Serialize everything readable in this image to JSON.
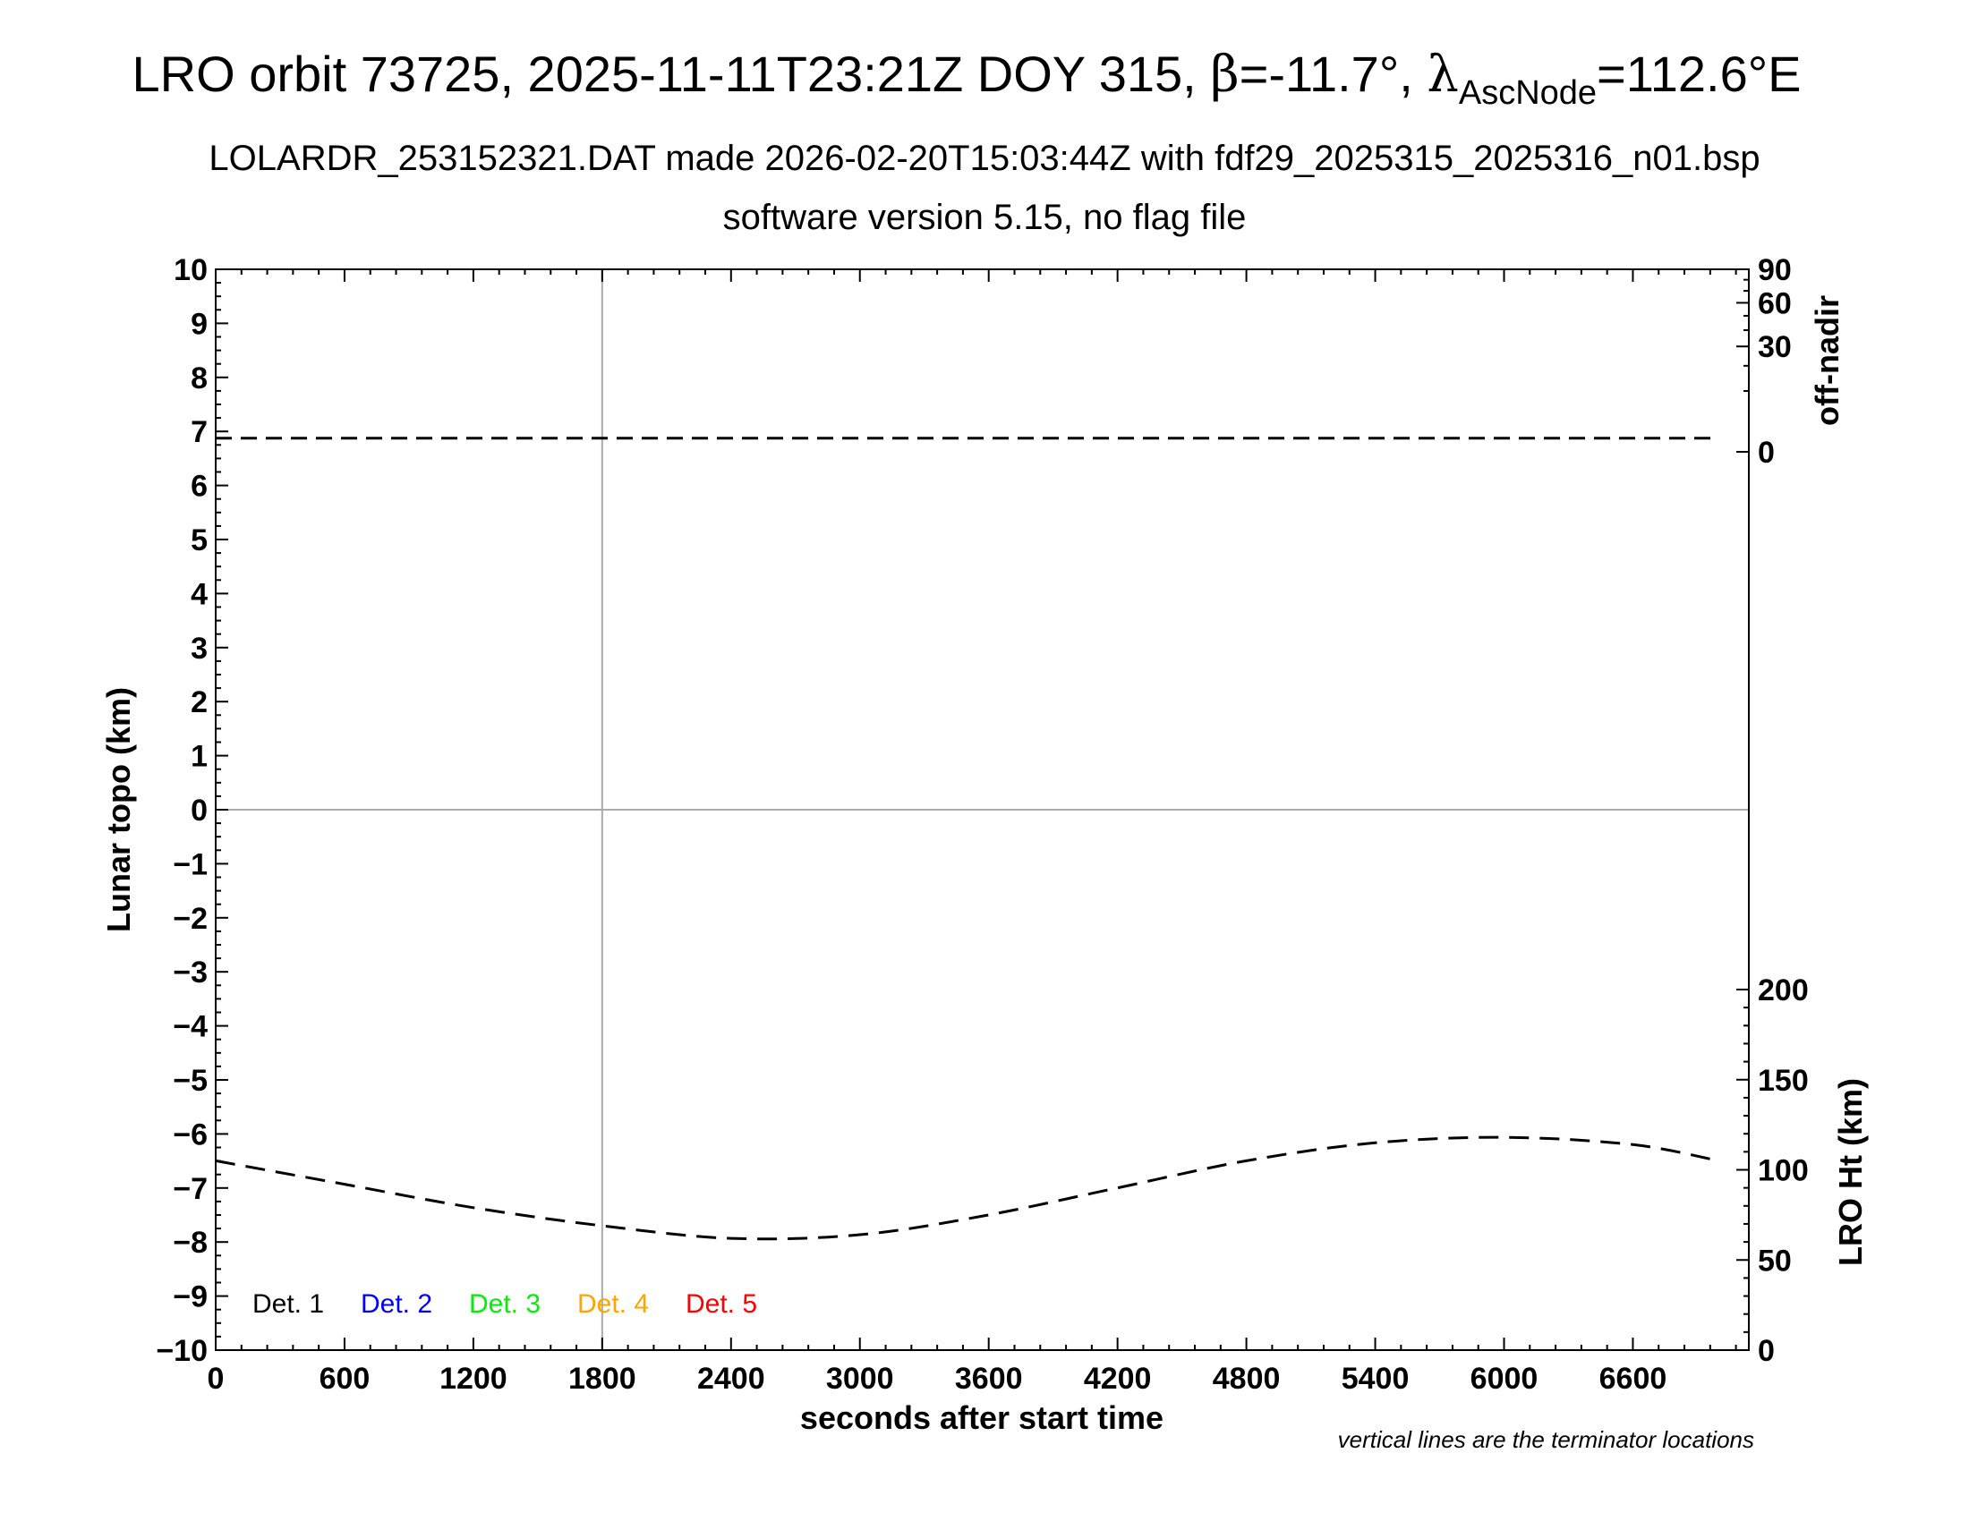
{
  "title": {
    "prefix": "LRO orbit 73725, 2025-11-11T23:21Z DOY 315, ",
    "beta_symbol": "β",
    "beta_value": "=-11.7°, ",
    "lambda_symbol": "λ",
    "lambda_subscript": "AscNode",
    "lambda_value": "=112.6°E"
  },
  "subtitle_1": "LOLARDR_253152321.DAT made 2026-02-20T15:03:44Z with fdf29_2025315_2025316_n01.bsp",
  "subtitle_2": "software version 5.15, no flag file",
  "footnote": "vertical lines are the terminator locations",
  "colors": {
    "axis": "#000000",
    "grid": "#aaaaaa",
    "det1": "#000000",
    "det2": "#0000ff",
    "det3": "#00ee00",
    "det4": "#ffa500",
    "det5": "#ff0000"
  },
  "chart_data": {
    "type": "line",
    "xlabel": "seconds after start time",
    "ylabel_left": "Lunar topo (km)",
    "ylabel_right_top": "off-nadir",
    "ylabel_right_bottom": "LRO Ht (km)",
    "xlim": [
      0,
      7140
    ],
    "ylim_left": [
      -10,
      10
    ],
    "x_ticks": [
      "0",
      "600",
      "1200",
      "1800",
      "2400",
      "3000",
      "3600",
      "4200",
      "4800",
      "5400",
      "6000",
      "6600"
    ],
    "y_ticks_left": [
      "10",
      "9",
      "8",
      "7",
      "6",
      "5",
      "4",
      "3",
      "2",
      "1",
      "0",
      "−1",
      "−2",
      "−3",
      "−4",
      "−5",
      "−6",
      "−7",
      "−8",
      "−9",
      "−10"
    ],
    "off_nadir_ticks": [
      "90",
      "60",
      "30",
      "0"
    ],
    "lro_ht_ticks": [
      "200",
      "150",
      "100",
      "50",
      "0"
    ],
    "terminator_lines_x": [
      1800
    ],
    "zero_line_y": 0,
    "legend": [
      "Det. 1",
      "Det. 2",
      "Det. 3",
      "Det. 4",
      "Det. 5"
    ],
    "series": [
      {
        "axis": "off-nadir (deg)",
        "style": "dashed",
        "x": [
          0,
          1000,
          2000,
          3000,
          4000,
          5000,
          6000,
          7000
        ],
        "y": [
          0.5,
          0.5,
          0.5,
          0.5,
          0.5,
          0.5,
          0.5,
          0.5
        ]
      },
      {
        "axis": "LRO Ht (km)",
        "style": "dashed",
        "x": [
          0,
          600,
          1200,
          1800,
          2400,
          3000,
          3600,
          4200,
          4800,
          5400,
          6000,
          6600,
          7000
        ],
        "y": [
          105,
          92,
          79,
          69,
          62,
          64,
          75,
          90,
          105,
          115,
          118,
          114,
          105
        ]
      }
    ]
  }
}
